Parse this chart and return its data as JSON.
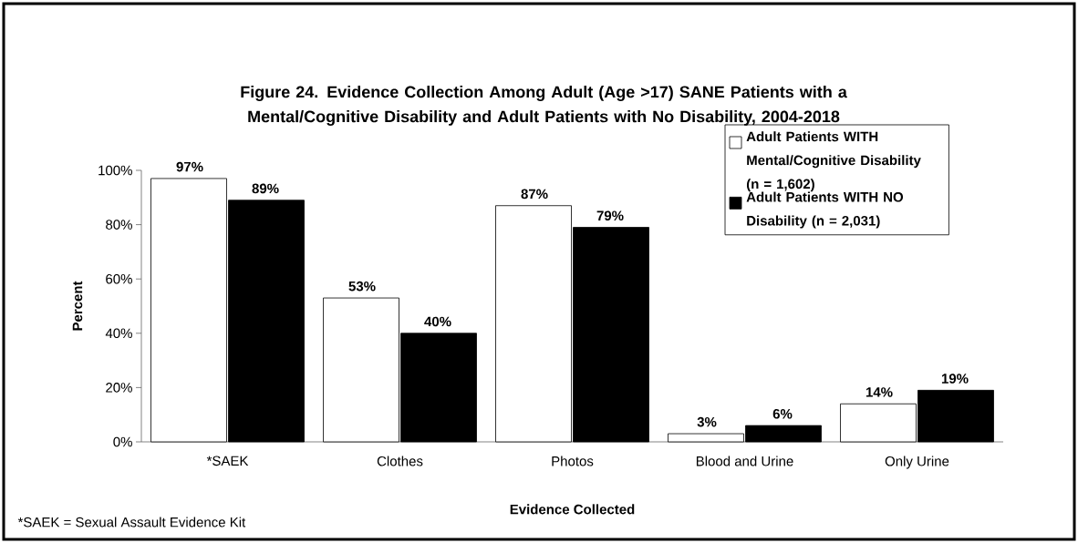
{
  "chart_data": {
    "type": "bar",
    "title": "Figure 24. Evidence Collection Among Adult (Age >17) SANE Patients with a Mental/Cognitive Disability and Adult Patients with No Disability, 2004-2018",
    "xlabel": "Evidence Collected",
    "ylabel": "Percent",
    "annotations": [
      "*SAEK = Sexual Assault Evidence Kit"
    ],
    "categories": [
      "*SAEK",
      "Clothes",
      "Photos",
      "Blood and Urine",
      "Only Urine"
    ],
    "series": [
      {
        "name": "Adult Patients WITH Mental/Cognitive Disability (n = 1,602)",
        "color": "#ffffff",
        "values": [
          97,
          53,
          87,
          3,
          14
        ],
        "value_labels": [
          "97%",
          "53%",
          "87%",
          "3%",
          "14%"
        ]
      },
      {
        "name": "Adult Patients WITH NO Disability  (n = 2,031)",
        "color": "#000000",
        "values": [
          89,
          40,
          79,
          6,
          19
        ],
        "value_labels": [
          "89%",
          "40%",
          "79%",
          "6%",
          "19%"
        ]
      }
    ],
    "ylim": [
      0,
      100
    ],
    "yticks": [
      {
        "value": 0,
        "label": "0%"
      },
      {
        "value": 20,
        "label": "20%"
      },
      {
        "value": 40,
        "label": "40%"
      },
      {
        "value": 60,
        "label": "60%"
      },
      {
        "value": 80,
        "label": "80%"
      },
      {
        "value": 100,
        "label": "100%"
      }
    ],
    "grid": false,
    "legend": "top right"
  }
}
